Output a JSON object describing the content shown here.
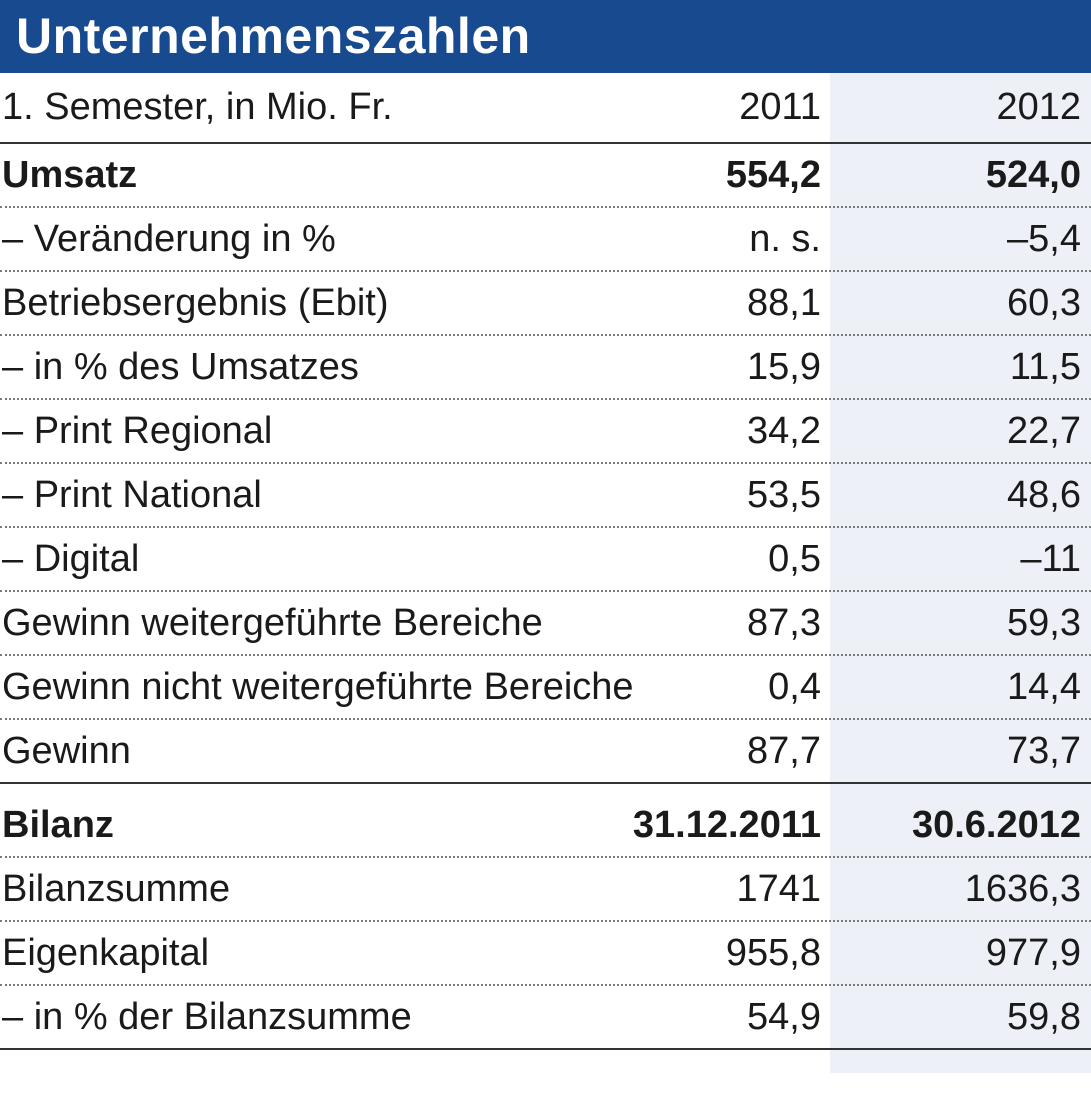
{
  "title": "Unternehmenszahlen",
  "header": {
    "label": "1. Semester, in Mio. Fr.",
    "col1": "2011",
    "col2": "2012"
  },
  "rows": [
    {
      "label": "Umsatz",
      "v2011": "554,2",
      "v2012": "524,0"
    },
    {
      "label": "– Veränderung in %",
      "v2011": "n. s.",
      "v2012": "–5,4"
    },
    {
      "label": "Betriebsergebnis (Ebit)",
      "v2011": "88,1",
      "v2012": "60,3"
    },
    {
      "label": "– in % des Umsatzes",
      "v2011": "15,9",
      "v2012": "11,5"
    },
    {
      "label": "– Print Regional",
      "v2011": "34,2",
      "v2012": "22,7"
    },
    {
      "label": "– Print National",
      "v2011": "53,5",
      "v2012": "48,6"
    },
    {
      "label": "– Digital",
      "v2011": "0,5",
      "v2012": "–11"
    },
    {
      "label": "Gewinn weitergeführte Bereiche",
      "v2011": "87,3",
      "v2012": "59,3"
    },
    {
      "label": "Gewinn nicht weitergeführte Bereiche",
      "v2011": "0,4",
      "v2012": "14,4"
    },
    {
      "label": "Gewinn",
      "v2011": "87,7",
      "v2012": "73,7"
    },
    {
      "label": "Bilanz",
      "v2011": "31.12.2011",
      "v2012": "30.6.2012"
    },
    {
      "label": "Bilanzsumme",
      "v2011": "1741",
      "v2012": "1636,3"
    },
    {
      "label": "Eigenkapital",
      "v2011": "955,8",
      "v2012": "977,9"
    },
    {
      "label": "– in % der Bilanzsumme",
      "v2011": "54,9",
      "v2012": "59,8"
    }
  ],
  "colors": {
    "title_bg": "#174a8f",
    "column_shade": "#eef0f7"
  }
}
